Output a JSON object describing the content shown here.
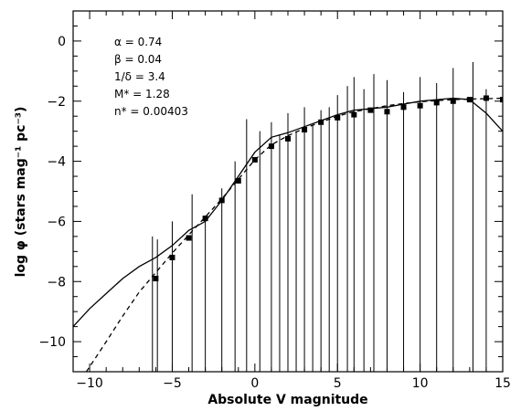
{
  "chart_data": {
    "type": "line",
    "title": "",
    "xlabel": "Absolute V magnitude",
    "ylabel": "log φ (stars mag⁻¹ pc⁻³)",
    "xlim": [
      -11,
      15
    ],
    "ylim": [
      -11,
      1
    ],
    "xticks": [
      -10,
      -5,
      0,
      5,
      10,
      15
    ],
    "yticks": [
      0,
      -2,
      -4,
      -6,
      -8,
      -10
    ],
    "xtick_labels": [
      "−10",
      "−5",
      "0",
      "5",
      "10",
      "15"
    ],
    "ytick_labels": [
      "0",
      "−2",
      "−4",
      "−6",
      "−8",
      "−10"
    ],
    "grid": false,
    "annotations": [
      "α = 0.74",
      "β = 0.04",
      "1/δ = 3.4",
      "M* = 1.28",
      "n* = 0.00403"
    ],
    "series": [
      {
        "style": "solid",
        "x": [
          -11,
          -10,
          -9,
          -8,
          -7,
          -6,
          -5,
          -4,
          -3,
          -2,
          -1,
          0,
          1,
          2,
          3,
          4,
          5,
          6,
          7,
          8,
          9,
          10,
          11,
          12,
          13,
          14,
          15
        ],
        "y": [
          -9.5,
          -8.9,
          -8.4,
          -7.9,
          -7.5,
          -7.2,
          -6.8,
          -6.3,
          -6.0,
          -5.3,
          -4.5,
          -3.7,
          -3.2,
          -3.05,
          -2.85,
          -2.65,
          -2.45,
          -2.3,
          -2.25,
          -2.2,
          -2.1,
          -2.0,
          -1.95,
          -1.9,
          -1.95,
          -2.4,
          -3.0
        ]
      },
      {
        "style": "dashed",
        "x": [
          -10.2,
          -9,
          -8,
          -7,
          -6,
          -5,
          -4,
          -3,
          -2,
          -1,
          0,
          1,
          2,
          3,
          4,
          5,
          6,
          7,
          8,
          9,
          10,
          11,
          12,
          13,
          14,
          15
        ],
        "y": [
          -11.0,
          -10.0,
          -9.15,
          -8.35,
          -7.7,
          -7.05,
          -6.45,
          -5.85,
          -5.25,
          -4.6,
          -3.95,
          -3.45,
          -3.15,
          -2.9,
          -2.7,
          -2.5,
          -2.35,
          -2.25,
          -2.15,
          -2.08,
          -2.02,
          -1.98,
          -1.95,
          -1.93,
          -1.92,
          -1.9
        ]
      },
      {
        "style": "squares",
        "x": [
          -6,
          -5,
          -4,
          -3,
          -2,
          -1,
          0,
          1,
          2,
          3,
          4,
          5,
          6,
          7,
          8,
          9,
          10,
          11,
          12,
          13,
          14,
          15
        ],
        "y": [
          -7.9,
          -7.2,
          -6.55,
          -5.9,
          -5.3,
          -4.65,
          -3.95,
          -3.5,
          -3.25,
          -2.95,
          -2.7,
          -2.55,
          -2.45,
          -2.3,
          -2.35,
          -2.2,
          -2.15,
          -2.05,
          -2.0,
          -1.95,
          -1.9,
          -1.95
        ]
      }
    ],
    "spikes": [
      {
        "x": -6.2,
        "y": -6.5
      },
      {
        "x": -5.9,
        "y": -6.6
      },
      {
        "x": -5.0,
        "y": -6.0
      },
      {
        "x": -3.8,
        "y": -5.1
      },
      {
        "x": -3.0,
        "y": -5.8
      },
      {
        "x": -2.0,
        "y": -4.9
      },
      {
        "x": -1.2,
        "y": -4.0
      },
      {
        "x": -0.5,
        "y": -2.6
      },
      {
        "x": 0.3,
        "y": -3.0
      },
      {
        "x": 1.0,
        "y": -2.7
      },
      {
        "x": 1.5,
        "y": -3.1
      },
      {
        "x": 2.0,
        "y": -2.4
      },
      {
        "x": 2.5,
        "y": -3.0
      },
      {
        "x": 3.0,
        "y": -2.2
      },
      {
        "x": 3.5,
        "y": -2.8
      },
      {
        "x": 4.0,
        "y": -2.3
      },
      {
        "x": 4.5,
        "y": -2.2
      },
      {
        "x": 5.0,
        "y": -1.8
      },
      {
        "x": 5.6,
        "y": -1.5
      },
      {
        "x": 6.0,
        "y": -1.2
      },
      {
        "x": 6.6,
        "y": -1.6
      },
      {
        "x": 7.2,
        "y": -1.1
      },
      {
        "x": 8.0,
        "y": -1.3
      },
      {
        "x": 9.0,
        "y": -1.7
      },
      {
        "x": 10.0,
        "y": -1.2
      },
      {
        "x": 11.0,
        "y": -1.4
      },
      {
        "x": 12.0,
        "y": -0.9
      },
      {
        "x": 13.2,
        "y": -0.7
      },
      {
        "x": 14.0,
        "y": -1.6
      }
    ]
  }
}
